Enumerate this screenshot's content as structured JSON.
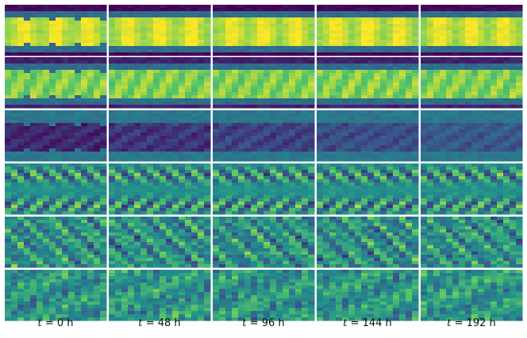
{
  "columns": [
    {
      "t": "t",
      "eq": "= 0 h"
    },
    {
      "t": "t",
      "eq": "= 48 h"
    },
    {
      "t": "t",
      "eq": "= 96 h"
    },
    {
      "t": "t",
      "eq": "= 144 h"
    },
    {
      "t": "t",
      "eq": "= 192 h"
    }
  ],
  "colormap": [
    "#440154",
    "#3b528b",
    "#21918c",
    "#5ec962",
    "#fde725"
  ],
  "rows": 6
}
